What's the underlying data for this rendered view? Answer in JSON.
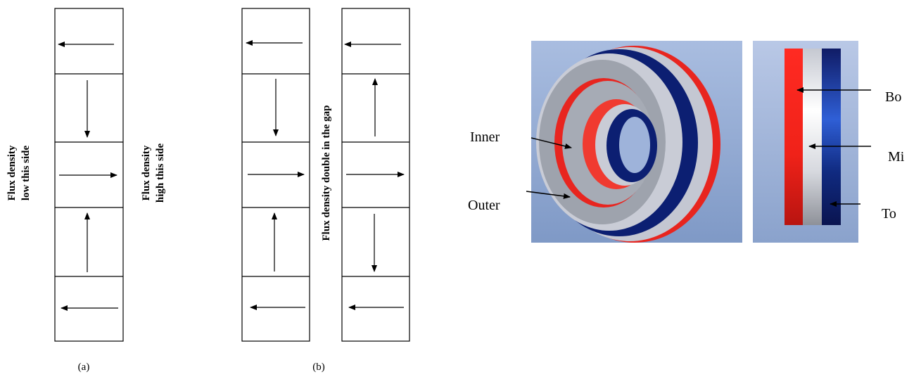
{
  "figure_a": {
    "caption": "(a)",
    "left_label_line1": "Flux density",
    "left_label_line2": "low this side",
    "right_label_line1": "Flux density",
    "right_label_line2": "high  this side",
    "arrows": [
      "left",
      "down",
      "right",
      "up",
      "left"
    ]
  },
  "figure_b": {
    "caption": "(b)",
    "gap_label": "Flux density  double  in the gap",
    "left_column_arrows": [
      "left",
      "down",
      "right",
      "up",
      "left"
    ],
    "right_column_arrows": [
      "left",
      "up",
      "right",
      "down",
      "left"
    ]
  },
  "rendering": {
    "ring_colors": {
      "outer_face": "#9ea3ad",
      "red": "#e8251f",
      "blue": "#0c1f72",
      "gray": "#c9ccd6"
    },
    "background_color": "#8ea5cf",
    "callouts": {
      "inner": "Inner",
      "outer": "Outer",
      "bottom": "Bo",
      "middle": "Mi",
      "top": "To"
    }
  }
}
